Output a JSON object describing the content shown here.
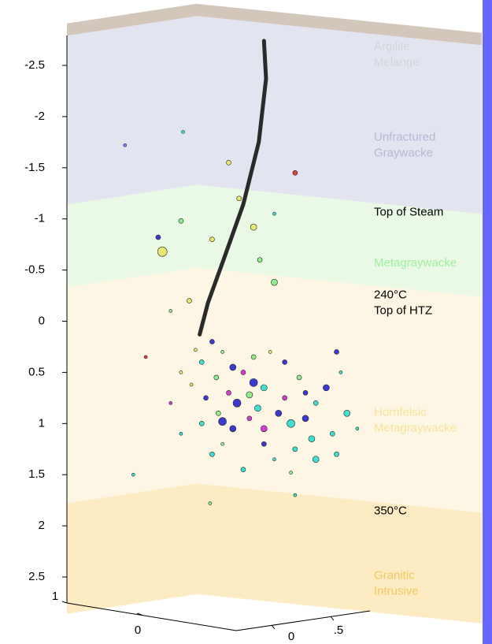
{
  "chart_data": {
    "type": "scatter3d",
    "ylim": [
      -2.95,
      2.9
    ],
    "xlim": [
      -1,
      1
    ],
    "yticks": [
      -2.5,
      -2,
      -1.5,
      -1,
      -0.5,
      0,
      0.5,
      1,
      1.5,
      2,
      2.5
    ],
    "x_axis_ticks": [
      1,
      0
    ],
    "z_axis_ticks": [
      0,
      {
        "value": 0.5,
        "label": ".5"
      }
    ],
    "layers": [
      {
        "name": [
          "Argilite",
          "Melange"
        ],
        "top": -2.91,
        "bottom": -2.79,
        "color": "#cbbcae",
        "label_color": "#a08a74"
      },
      {
        "name": [
          "Unfractured",
          "Graywacke"
        ],
        "top": -2.79,
        "bottom": -1.14,
        "color": "#dde0ec",
        "label_color": "#b3b9d6"
      },
      {
        "name": [
          "Metagraywacke"
        ],
        "top": -1.14,
        "bottom": -0.33,
        "color": "#e5f8e2",
        "label_color": "#9ef09e",
        "top_label": [
          "Top of Steam"
        ]
      },
      {
        "name": [
          "Hornfelsic",
          "Metagraywacke"
        ],
        "top": -0.33,
        "bottom": 1.78,
        "color": "#fdf4df",
        "label_color": "#f6e49a",
        "top_label": [
          "240°C",
          "Top of HTZ"
        ]
      },
      {
        "name": [
          "Granitic",
          "Intrusive"
        ],
        "top": 1.78,
        "bottom": 2.86,
        "color": "#fde8b8",
        "label_color": "#f2c860",
        "top_label": [
          "350°C"
        ]
      }
    ],
    "well": {
      "x": [
        -0.05,
        -0.04,
        -0.075,
        -0.15,
        -0.245,
        -0.32,
        -0.36
      ],
      "depth": [
        -2.74,
        -2.37,
        -1.75,
        -1.14,
        -0.6,
        -0.18,
        0.13
      ]
    },
    "points": {
      "x": [
        -0.72,
        -0.44,
        -0.22,
        0.1,
        -0.17,
        -0.45,
        -0.56,
        -0.54,
        -0.3,
        -0.1,
        0.0,
        -0.07,
        0.0,
        -0.41,
        -0.5,
        -0.62,
        0.32,
        -0.68,
        -0.31,
        0.1,
        0.3,
        -0.3,
        -0.25,
        -0.35,
        -0.2,
        -0.15,
        -0.28,
        -0.1,
        -0.05,
        -0.22,
        -0.33,
        -0.4,
        -0.18,
        -0.08,
        0.02,
        -0.27,
        -0.12,
        0.08,
        -0.2,
        -0.35,
        0.15,
        0.2,
        0.25,
        0.12,
        0.05,
        -0.02,
        0.18,
        0.1,
        -0.05,
        -0.25,
        0.28,
        -0.3,
        0.0,
        0.2,
        -0.15,
        0.08,
        -0.45,
        -0.5,
        -0.45,
        0.35,
        0.4,
        0.3,
        -0.1,
        -0.38,
        -0.12,
        0.05,
        -0.25,
        -0.05,
        0.15
      ],
      "depth": [
        -1.72,
        -1.85,
        -1.55,
        -1.45,
        -1.2,
        -0.98,
        -0.82,
        -0.68,
        -0.8,
        -0.92,
        -1.05,
        -0.6,
        -0.38,
        -0.2,
        -0.1,
        0.35,
        0.5,
        1.5,
        1.78,
        1.7,
        0.3,
        0.2,
        0.3,
        0.4,
        0.45,
        0.5,
        0.55,
        0.6,
        0.65,
        0.7,
        0.75,
        0.62,
        0.8,
        0.85,
        0.9,
        0.9,
        0.95,
        1.0,
        1.05,
        1.0,
        0.95,
        0.8,
        0.65,
        0.55,
        0.4,
        0.3,
        1.15,
        1.25,
        1.2,
        1.2,
        1.1,
        1.3,
        1.35,
        1.35,
        1.45,
        1.48,
        0.5,
        0.8,
        1.1,
        0.9,
        1.05,
        1.3,
        0.35,
        0.28,
        0.72,
        0.75,
        0.98,
        1.05,
        0.7
      ],
      "sizes": [
        2,
        2,
        3,
        3,
        3,
        3,
        3,
        6,
        3,
        4,
        2,
        3,
        4,
        3,
        2,
        2,
        2,
        2,
        2,
        2,
        3,
        3,
        2,
        3,
        4,
        3,
        3,
        5,
        4,
        3,
        3,
        2,
        5,
        4,
        4,
        3,
        3,
        5,
        4,
        3,
        4,
        3,
        4,
        3,
        3,
        2,
        4,
        3,
        3,
        2,
        3,
        3,
        2,
        4,
        3,
        2,
        2,
        2,
        2,
        4,
        2,
        3,
        3,
        2,
        4,
        3,
        5,
        4,
        3
      ],
      "colors": [
        "#8080ff",
        "#40e0d0",
        "#e8e870",
        "#e04040",
        "#e8e870",
        "#90ee90",
        "#3a3ad0",
        "#e8e870",
        "#e8e870",
        "#e8e870",
        "#40e0d0",
        "#90ee90",
        "#90ee90",
        "#e8e870",
        "#90ee90",
        "#e04040",
        "#40e0d0",
        "#40e0d0",
        "#90ee90",
        "#40e0d0",
        "#3a3ad0",
        "#3a3ad0",
        "#90ee90",
        "#40e0d0",
        "#3a3ad0",
        "#d040d0",
        "#90ee90",
        "#3a3ad0",
        "#40e0d0",
        "#d040d0",
        "#3a3ad0",
        "#e8e870",
        "#3a3ad0",
        "#40e0d0",
        "#3a3ad0",
        "#90ee90",
        "#d040d0",
        "#40e0d0",
        "#3a3ad0",
        "#40e0d0",
        "#3a3ad0",
        "#40e0d0",
        "#3a3ad0",
        "#90ee90",
        "#3a3ad0",
        "#e8e870",
        "#40e0d0",
        "#40e0d0",
        "#3a3ad0",
        "#90ee90",
        "#40e0d0",
        "#40e0d0",
        "#40e0d0",
        "#40e0d0",
        "#40e0d0",
        "#90ee90",
        "#e8e870",
        "#d040d0",
        "#40e0d0",
        "#40e0d0",
        "#40e0d0",
        "#40e0d0",
        "#90ee90",
        "#e8e870",
        "#90ee90",
        "#d040d0",
        "#3a3ad0",
        "#d040d0",
        "#3a3ad0"
      ]
    },
    "side_bar_color": "#6666ff"
  }
}
